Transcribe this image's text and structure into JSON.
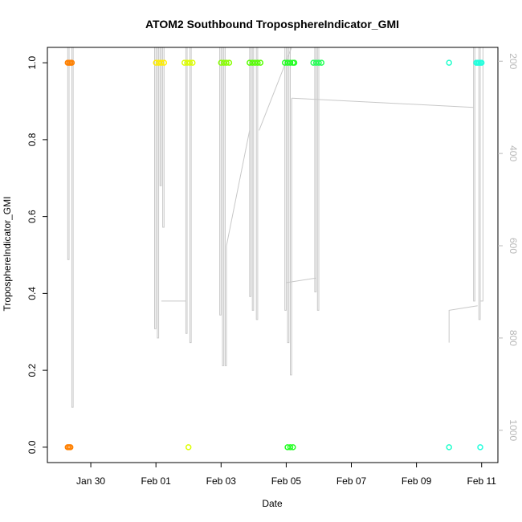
{
  "chart_data": {
    "type": "scatter",
    "title": "ATOM2 Southbound TroposphereIndicator_GMI",
    "xlabel": "Date",
    "ylabel": "TroposphereIndicator_GMI",
    "xlim": [
      "2016-01-28T16:00",
      "2016-02-11T12:00"
    ],
    "ylim": [
      -0.04,
      1.04
    ],
    "right_axis": {
      "description": "pressure (hPa), inverted, drawn in light gray",
      "ticks": [
        200,
        400,
        600,
        800,
        1000
      ],
      "range_top": 170,
      "range_bottom": 1070,
      "color": "#b8b8b8"
    },
    "x_ticks": [
      {
        "label": "Jan 30",
        "date": "2016-01-30"
      },
      {
        "label": "Feb 01",
        "date": "2016-02-01"
      },
      {
        "label": "Feb 03",
        "date": "2016-02-03"
      },
      {
        "label": "Feb 05",
        "date": "2016-02-05"
      },
      {
        "label": "Feb 07",
        "date": "2016-02-07"
      },
      {
        "label": "Feb 09",
        "date": "2016-02-09"
      },
      {
        "label": "Feb 11",
        "date": "2016-02-11"
      }
    ],
    "y_ticks": [
      "0.0",
      "0.2",
      "0.4",
      "0.6",
      "0.8",
      "1.0"
    ],
    "series": [
      {
        "color": "#ff8000",
        "points": [
          {
            "x": "2016-01-29T07:00",
            "y": 1.0
          },
          {
            "x": "2016-01-29T08:00",
            "y": 1.0
          },
          {
            "x": "2016-01-29T09:00",
            "y": 1.0
          },
          {
            "x": "2016-01-29T10:00",
            "y": 1.0
          },
          {
            "x": "2016-01-29T07:00",
            "y": 0.0
          },
          {
            "x": "2016-01-29T08:00",
            "y": 0.0
          },
          {
            "x": "2016-01-29T09:00",
            "y": 0.0
          }
        ]
      },
      {
        "color": "#ffee00",
        "points": [
          {
            "x": "2016-02-01T00:00",
            "y": 1.0
          },
          {
            "x": "2016-02-01T02:00",
            "y": 1.0
          },
          {
            "x": "2016-02-01T04:00",
            "y": 1.0
          },
          {
            "x": "2016-02-01T06:00",
            "y": 1.0
          }
        ]
      },
      {
        "color": "#ddff00",
        "points": [
          {
            "x": "2016-02-01T21:00",
            "y": 1.0
          },
          {
            "x": "2016-02-01T23:00",
            "y": 1.0
          },
          {
            "x": "2016-02-02T01:00",
            "y": 1.0
          },
          {
            "x": "2016-02-02T03:00",
            "y": 1.0
          },
          {
            "x": "2016-02-02T00:00",
            "y": 0.0
          }
        ]
      },
      {
        "color": "#88ff00",
        "points": [
          {
            "x": "2016-02-03T00:00",
            "y": 1.0
          },
          {
            "x": "2016-02-03T02:00",
            "y": 1.0
          },
          {
            "x": "2016-02-03T04:00",
            "y": 1.0
          },
          {
            "x": "2016-02-03T06:00",
            "y": 1.0
          }
        ]
      },
      {
        "color": "#55ff00",
        "points": [
          {
            "x": "2016-02-03T21:00",
            "y": 1.0
          },
          {
            "x": "2016-02-03T23:00",
            "y": 1.0
          },
          {
            "x": "2016-02-04T01:00",
            "y": 1.0
          },
          {
            "x": "2016-02-04T03:00",
            "y": 1.0
          },
          {
            "x": "2016-02-04T05:00",
            "y": 1.0
          }
        ]
      },
      {
        "color": "#22ff22",
        "points": [
          {
            "x": "2016-02-04T23:00",
            "y": 1.0
          },
          {
            "x": "2016-02-05T01:00",
            "y": 1.0
          },
          {
            "x": "2016-02-05T03:00",
            "y": 1.0
          },
          {
            "x": "2016-02-05T05:00",
            "y": 1.0
          },
          {
            "x": "2016-02-05T06:00",
            "y": 1.0
          },
          {
            "x": "2016-02-05T01:00",
            "y": 0.0
          },
          {
            "x": "2016-02-05T03:00",
            "y": 0.0
          },
          {
            "x": "2016-02-05T05:00",
            "y": 0.0
          }
        ]
      },
      {
        "color": "#22ff55",
        "points": [
          {
            "x": "2016-02-05T20:00",
            "y": 1.0
          },
          {
            "x": "2016-02-05T22:00",
            "y": 1.0
          },
          {
            "x": "2016-02-06T00:00",
            "y": 1.0
          },
          {
            "x": "2016-02-06T02:00",
            "y": 1.0
          }
        ]
      },
      {
        "color": "#22ffcc",
        "points": [
          {
            "x": "2016-02-10T00:00",
            "y": 1.0
          },
          {
            "x": "2016-02-10T00:00",
            "y": 0.0
          }
        ]
      },
      {
        "color": "#22ffdd",
        "points": [
          {
            "x": "2016-02-10T20:00",
            "y": 1.0
          },
          {
            "x": "2016-02-10T21:00",
            "y": 1.0
          },
          {
            "x": "2016-02-10T22:00",
            "y": 1.0
          },
          {
            "x": "2016-02-10T23:00",
            "y": 1.0
          },
          {
            "x": "2016-02-11T00:00",
            "y": 1.0
          },
          {
            "x": "2016-02-10T23:00",
            "y": 0.0
          }
        ]
      }
    ],
    "pressure_trace": {
      "color": "#c8c8c8",
      "segments": [
        [
          [
            "2016-01-29T07:00",
            170
          ],
          [
            "2016-01-29T07:00",
            630
          ],
          [
            "2016-01-29T08:00",
            630
          ],
          [
            "2016-01-29T08:00",
            170
          ]
        ],
        [
          [
            "2016-01-29T10:00",
            170
          ],
          [
            "2016-01-29T10:00",
            950
          ],
          [
            "2016-01-29T11:00",
            950
          ],
          [
            "2016-01-29T11:00",
            170
          ]
        ],
        [
          [
            "2016-01-31T23:00",
            170
          ],
          [
            "2016-01-31T23:00",
            780
          ],
          [
            "2016-02-01T00:00",
            780
          ],
          [
            "2016-02-01T00:00",
            170
          ]
        ],
        [
          [
            "2016-02-01T01:00",
            170
          ],
          [
            "2016-02-01T01:00",
            800
          ],
          [
            "2016-02-01T02:00",
            800
          ],
          [
            "2016-02-01T02:00",
            170
          ]
        ],
        [
          [
            "2016-02-01T03:00",
            170
          ],
          [
            "2016-02-01T03:00",
            470
          ],
          [
            "2016-02-01T04:00",
            470
          ],
          [
            "2016-02-01T04:00",
            170
          ]
        ],
        [
          [
            "2016-02-01T05:00",
            170
          ],
          [
            "2016-02-01T05:00",
            560
          ],
          [
            "2016-02-01T06:00",
            560
          ],
          [
            "2016-02-01T06:00",
            170
          ]
        ],
        [
          [
            "2016-02-01T04:00",
            720
          ],
          [
            "2016-02-01T22:00",
            720
          ]
        ],
        [
          [
            "2016-02-01T22:00",
            170
          ],
          [
            "2016-02-01T22:00",
            790
          ],
          [
            "2016-02-01T23:00",
            790
          ],
          [
            "2016-02-01T23:00",
            170
          ]
        ],
        [
          [
            "2016-02-02T01:00",
            170
          ],
          [
            "2016-02-02T01:00",
            810
          ],
          [
            "2016-02-02T02:00",
            810
          ],
          [
            "2016-02-02T02:00",
            170
          ]
        ],
        [
          [
            "2016-02-02T23:00",
            170
          ],
          [
            "2016-02-02T23:00",
            750
          ],
          [
            "2016-02-03T00:00",
            750
          ],
          [
            "2016-02-03T00:00",
            170
          ]
        ],
        [
          [
            "2016-02-03T01:00",
            170
          ],
          [
            "2016-02-03T01:00",
            860
          ],
          [
            "2016-02-03T02:00",
            860
          ],
          [
            "2016-02-03T02:00",
            170
          ]
        ],
        [
          [
            "2016-02-03T03:00",
            170
          ],
          [
            "2016-02-03T03:00",
            860
          ],
          [
            "2016-02-03T04:00",
            860
          ],
          [
            "2016-02-03T04:00",
            600
          ]
        ],
        [
          [
            "2016-02-03T04:00",
            600
          ],
          [
            "2016-02-03T21:00",
            350
          ]
        ],
        [
          [
            "2016-02-03T21:00",
            170
          ],
          [
            "2016-02-03T21:00",
            710
          ],
          [
            "2016-02-03T22:00",
            710
          ],
          [
            "2016-02-03T22:00",
            170
          ]
        ],
        [
          [
            "2016-02-03T23:00",
            170
          ],
          [
            "2016-02-03T23:00",
            740
          ],
          [
            "2016-02-04T00:00",
            740
          ],
          [
            "2016-02-04T00:00",
            170
          ]
        ],
        [
          [
            "2016-02-04T02:00",
            170
          ],
          [
            "2016-02-04T02:00",
            760
          ],
          [
            "2016-02-04T03:00",
            760
          ],
          [
            "2016-02-04T03:00",
            170
          ]
        ],
        [
          [
            "2016-02-04T04:00",
            350
          ],
          [
            "2016-02-05T04:00",
            170
          ]
        ],
        [
          [
            "2016-02-04T23:00",
            170
          ],
          [
            "2016-02-04T23:00",
            740
          ],
          [
            "2016-02-05T00:00",
            740
          ],
          [
            "2016-02-05T00:00",
            170
          ]
        ],
        [
          [
            "2016-02-05T01:00",
            170
          ],
          [
            "2016-02-05T01:00",
            810
          ],
          [
            "2016-02-05T02:00",
            810
          ],
          [
            "2016-02-05T02:00",
            170
          ]
        ],
        [
          [
            "2016-02-05T03:00",
            170
          ],
          [
            "2016-02-05T03:00",
            880
          ],
          [
            "2016-02-05T04:00",
            880
          ],
          [
            "2016-02-05T04:00",
            280
          ]
        ],
        [
          [
            "2016-02-05T04:00",
            280
          ],
          [
            "2016-02-10T18:00",
            300
          ]
        ],
        [
          [
            "2016-02-05T00:00",
            680
          ],
          [
            "2016-02-05T22:00",
            670
          ]
        ],
        [
          [
            "2016-02-05T21:00",
            170
          ],
          [
            "2016-02-05T21:00",
            700
          ],
          [
            "2016-02-05T22:00",
            700
          ],
          [
            "2016-02-05T22:00",
            170
          ]
        ],
        [
          [
            "2016-02-05T23:00",
            170
          ],
          [
            "2016-02-05T23:00",
            740
          ],
          [
            "2016-02-06T00:00",
            740
          ],
          [
            "2016-02-06T00:00",
            170
          ]
        ],
        [
          [
            "2016-02-10T00:00",
            810
          ],
          [
            "2016-02-10T00:00",
            740
          ],
          [
            "2016-02-10T21:00",
            730
          ]
        ],
        [
          [
            "2016-02-10T18:00",
            170
          ],
          [
            "2016-02-10T18:00",
            720
          ],
          [
            "2016-02-10T19:00",
            720
          ],
          [
            "2016-02-10T19:00",
            170
          ]
        ],
        [
          [
            "2016-02-10T22:00",
            170
          ],
          [
            "2016-02-10T22:00",
            760
          ],
          [
            "2016-02-10T23:00",
            760
          ],
          [
            "2016-02-10T23:00",
            170
          ]
        ],
        [
          [
            "2016-02-10T23:00",
            720
          ],
          [
            "2016-02-11T01:00",
            720
          ],
          [
            "2016-02-11T01:00",
            170
          ]
        ]
      ]
    }
  }
}
